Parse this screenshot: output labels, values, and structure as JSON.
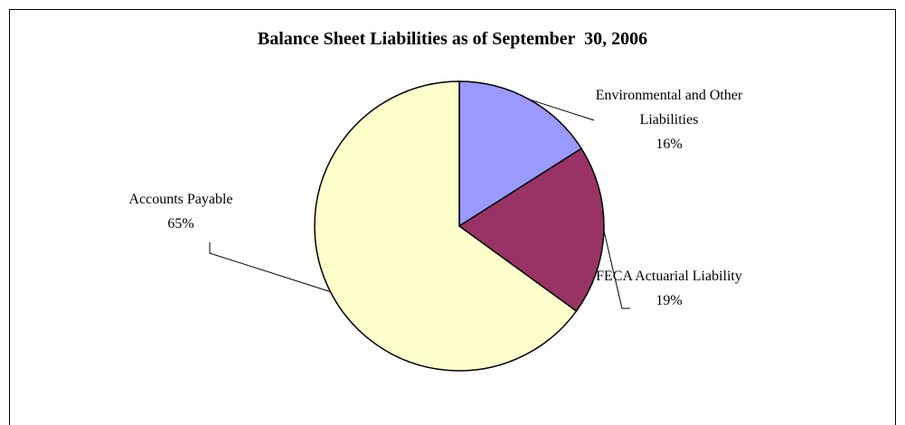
{
  "chart_data": {
    "type": "pie",
    "title": "Balance Sheet Liabilities as of September  30, 2006",
    "categories": [
      "Environmental and Other Liabilities",
      "FECA Actuarial Liability",
      "Accounts Payable"
    ],
    "values": [
      16,
      19,
      65
    ],
    "value_labels": [
      "16%",
      "19%",
      "65%"
    ],
    "colors": [
      "#9999ff",
      "#993366",
      "#ffffcc"
    ]
  }
}
